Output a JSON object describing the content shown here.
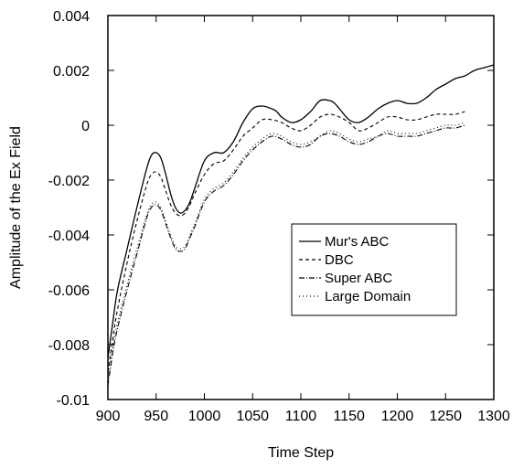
{
  "chart_data": {
    "type": "line",
    "title": "",
    "xlabel": "Time Step",
    "ylabel": "Amplitude of the Ex Field",
    "xlim": [
      900,
      1300
    ],
    "ylim": [
      -0.01,
      0.004
    ],
    "xticks": [
      900,
      950,
      1000,
      1050,
      1100,
      1150,
      1200,
      1250,
      1300
    ],
    "yticks": [
      -0.01,
      -0.008,
      -0.006,
      -0.004,
      -0.002,
      0,
      0.002,
      0.004
    ],
    "xtick_labels": [
      "900",
      "950",
      "1000",
      "1050",
      "1100",
      "1150",
      "1200",
      "1250",
      "1300"
    ],
    "ytick_labels": [
      "-0.01",
      "-0.008",
      "-0.006",
      "-0.004",
      "-0.002",
      "0",
      "0.002",
      "0.004"
    ],
    "grid": false,
    "legend_position": "right",
    "series": [
      {
        "name": "Mur's ABC",
        "style": "solid",
        "x": [
          900,
          905,
          910,
          920,
          930,
          940,
          945,
          950,
          955,
          960,
          965,
          970,
          975,
          980,
          985,
          990,
          1000,
          1010,
          1020,
          1030,
          1040,
          1050,
          1060,
          1070,
          1075,
          1080,
          1090,
          1100,
          1110,
          1120,
          1130,
          1135,
          1140,
          1150,
          1160,
          1170,
          1180,
          1190,
          1200,
          1210,
          1220,
          1230,
          1240,
          1250,
          1260,
          1270,
          1280,
          1290,
          1300
        ],
        "y": [
          -0.0085,
          -0.0072,
          -0.006,
          -0.0045,
          -0.003,
          -0.0016,
          -0.0011,
          -0.001,
          -0.0012,
          -0.0018,
          -0.0025,
          -0.003,
          -0.0032,
          -0.0031,
          -0.0028,
          -0.0023,
          -0.0013,
          -0.001,
          -0.001,
          -0.0006,
          0.0001,
          0.0006,
          0.0007,
          0.0006,
          0.0005,
          0.0003,
          0.0001,
          0.0002,
          0.0005,
          0.0009,
          0.0009,
          0.0008,
          0.0006,
          0.0002,
          0.0001,
          0.0003,
          0.0006,
          0.0008,
          0.0009,
          0.0008,
          0.0008,
          0.001,
          0.0013,
          0.0015,
          0.0017,
          0.0018,
          0.002,
          0.0021,
          0.0022
        ]
      },
      {
        "name": "DBC",
        "style": "dashed",
        "x": [
          900,
          905,
          910,
          920,
          930,
          940,
          945,
          950,
          955,
          960,
          965,
          970,
          975,
          980,
          985,
          990,
          1000,
          1010,
          1020,
          1030,
          1040,
          1050,
          1060,
          1070,
          1080,
          1090,
          1100,
          1110,
          1120,
          1130,
          1140,
          1150,
          1160,
          1170,
          1180,
          1190,
          1200,
          1210,
          1220,
          1230,
          1240,
          1250,
          1260,
          1270
        ],
        "y": [
          -0.009,
          -0.0078,
          -0.0067,
          -0.005,
          -0.0035,
          -0.0022,
          -0.0018,
          -0.0017,
          -0.0019,
          -0.0024,
          -0.0029,
          -0.0032,
          -0.0033,
          -0.0032,
          -0.0029,
          -0.0025,
          -0.0018,
          -0.0014,
          -0.0013,
          -0.0009,
          -0.0004,
          -0.0001,
          0.0002,
          0.0002,
          0.0001,
          -0.0001,
          -0.0002,
          0.0,
          0.0003,
          0.0004,
          0.0003,
          0.0001,
          -0.0002,
          -0.0001,
          0.0001,
          0.0003,
          0.0003,
          0.0002,
          0.0002,
          0.0003,
          0.0004,
          0.0004,
          0.0004,
          0.0005
        ]
      },
      {
        "name": "Super ABC",
        "style": "dash-dot",
        "x": [
          900,
          905,
          910,
          920,
          930,
          940,
          945,
          950,
          955,
          960,
          965,
          970,
          975,
          980,
          985,
          990,
          1000,
          1010,
          1020,
          1030,
          1040,
          1050,
          1060,
          1070,
          1080,
          1090,
          1100,
          1110,
          1120,
          1130,
          1140,
          1150,
          1160,
          1170,
          1180,
          1190,
          1200,
          1210,
          1220,
          1230,
          1240,
          1250,
          1260,
          1270
        ],
        "y": [
          -0.0095,
          -0.0083,
          -0.0074,
          -0.006,
          -0.0047,
          -0.0034,
          -0.003,
          -0.0029,
          -0.0031,
          -0.0036,
          -0.0041,
          -0.0045,
          -0.0046,
          -0.0045,
          -0.0041,
          -0.0037,
          -0.0028,
          -0.0024,
          -0.0022,
          -0.0018,
          -0.0013,
          -0.0009,
          -0.0006,
          -0.0004,
          -0.0005,
          -0.0007,
          -0.0008,
          -0.0007,
          -0.0004,
          -0.0003,
          -0.0004,
          -0.0006,
          -0.0007,
          -0.0006,
          -0.0004,
          -0.0003,
          -0.0004,
          -0.0004,
          -0.0004,
          -0.0003,
          -0.0002,
          -0.0001,
          -0.0001,
          0.0
        ]
      },
      {
        "name": "Large Domain",
        "style": "dotted",
        "x": [
          900,
          905,
          910,
          920,
          930,
          940,
          945,
          950,
          955,
          960,
          965,
          970,
          975,
          980,
          985,
          990,
          1000,
          1010,
          1020,
          1030,
          1040,
          1050,
          1060,
          1070,
          1080,
          1090,
          1100,
          1110,
          1120,
          1130,
          1140,
          1150,
          1160,
          1170,
          1180,
          1190,
          1200,
          1210,
          1220,
          1230,
          1240,
          1250,
          1260,
          1270
        ],
        "y": [
          -0.0093,
          -0.0081,
          -0.0072,
          -0.0058,
          -0.0045,
          -0.0033,
          -0.0029,
          -0.0028,
          -0.003,
          -0.0035,
          -0.004,
          -0.0044,
          -0.0045,
          -0.0044,
          -0.004,
          -0.0036,
          -0.0027,
          -0.0023,
          -0.0021,
          -0.0017,
          -0.0012,
          -0.0008,
          -0.0005,
          -0.0003,
          -0.0004,
          -0.0006,
          -0.0007,
          -0.0006,
          -0.0004,
          -0.0002,
          -0.0003,
          -0.0005,
          -0.0006,
          -0.0005,
          -0.0004,
          -0.0002,
          -0.0003,
          -0.0003,
          -0.0003,
          -0.0002,
          -0.0001,
          0.0,
          0.0,
          0.0001
        ]
      }
    ]
  }
}
